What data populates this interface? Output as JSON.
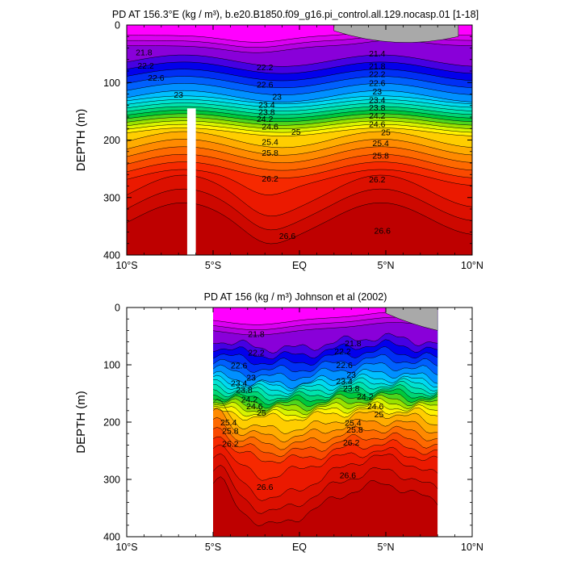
{
  "chart_data": [
    {
      "type": "contour",
      "title": "PD AT 156.3°E (kg / m³), b.e20.B1850.f09_g16.pi_control.all.129.nocasp.01 [1-18]",
      "ylabel": "DEPTH (m)",
      "xlabel": "",
      "xlim": [
        -10,
        10
      ],
      "ylim": [
        400,
        0
      ],
      "x_ticks": [
        -10,
        -5,
        0,
        5,
        10
      ],
      "x_tick_labels": [
        "10°S",
        "5°S",
        "EQ",
        "5°N",
        "10°N"
      ],
      "y_ticks": [
        0,
        100,
        200,
        300,
        400
      ],
      "y_tick_labels": [
        "0",
        "100",
        "200",
        "300",
        "400"
      ],
      "data_xrange": [
        -10,
        10
      ],
      "masked_column": {
        "x": [
          -6.5,
          -6.0
        ],
        "depth_from": 145,
        "depth_to": 400
      },
      "missing_region_color": "#a9a9a9",
      "contour_levels": [
        21.4,
        21.6,
        21.8,
        22.0,
        22.2,
        22.4,
        22.6,
        22.8,
        23.0,
        23.2,
        23.4,
        23.6,
        23.8,
        24.0,
        24.2,
        24.4,
        24.6,
        24.8,
        25.0,
        25.2,
        25.4,
        25.6,
        25.8,
        26.0,
        26.2,
        26.4,
        26.6,
        26.8
      ],
      "contour_labels": [
        {
          "text": "21.8",
          "x": -9.0,
          "y": 47
        },
        {
          "text": "22.2",
          "x": -8.9,
          "y": 70
        },
        {
          "text": "22.6",
          "x": -8.3,
          "y": 91
        },
        {
          "text": "23",
          "x": -7.0,
          "y": 121
        },
        {
          "text": "22.2",
          "x": -2.0,
          "y": 73
        },
        {
          "text": "22.6",
          "x": -2.0,
          "y": 103
        },
        {
          "text": "23",
          "x": -1.3,
          "y": 124
        },
        {
          "text": "23.4",
          "x": -1.9,
          "y": 138
        },
        {
          "text": "23.8",
          "x": -1.9,
          "y": 151
        },
        {
          "text": "24.2",
          "x": -2.0,
          "y": 163
        },
        {
          "text": "24.6",
          "x": -1.7,
          "y": 176
        },
        {
          "text": "25",
          "x": -0.2,
          "y": 185
        },
        {
          "text": "25.4",
          "x": -1.7,
          "y": 203
        },
        {
          "text": "25.8",
          "x": -1.7,
          "y": 222
        },
        {
          "text": "26.2",
          "x": -1.7,
          "y": 267
        },
        {
          "text": "26.6",
          "x": -0.7,
          "y": 366
        },
        {
          "text": "21.4",
          "x": 4.5,
          "y": 49
        },
        {
          "text": "21.8",
          "x": 4.5,
          "y": 71
        },
        {
          "text": "22.2",
          "x": 4.5,
          "y": 85
        },
        {
          "text": "22.6",
          "x": 4.5,
          "y": 100
        },
        {
          "text": "23",
          "x": 4.5,
          "y": 115
        },
        {
          "text": "23.4",
          "x": 4.5,
          "y": 130
        },
        {
          "text": "23.8",
          "x": 4.5,
          "y": 143
        },
        {
          "text": "24.2",
          "x": 4.5,
          "y": 157
        },
        {
          "text": "24.6",
          "x": 4.5,
          "y": 172
        },
        {
          "text": "25",
          "x": 5.0,
          "y": 186
        },
        {
          "text": "25.4",
          "x": 4.7,
          "y": 205
        },
        {
          "text": "25.8",
          "x": 4.7,
          "y": 227
        },
        {
          "text": "26.2",
          "x": 4.5,
          "y": 268
        },
        {
          "text": "26.6",
          "x": 4.8,
          "y": 357
        }
      ]
    },
    {
      "type": "contour",
      "title": "PD AT 156 (kg / m³) Johnson et al (2002)",
      "ylabel": "DEPTH (m)",
      "xlabel": "",
      "xlim": [
        -10,
        10
      ],
      "ylim": [
        400,
        0
      ],
      "x_ticks": [
        -10,
        -5,
        0,
        5,
        10
      ],
      "x_tick_labels": [
        "10°S",
        "5°S",
        "EQ",
        "5°N",
        "10°N"
      ],
      "y_ticks": [
        0,
        100,
        200,
        300,
        400
      ],
      "y_tick_labels": [
        "0",
        "100",
        "200",
        "300",
        "400"
      ],
      "data_xrange": [
        -5,
        8
      ],
      "missing_region_color": "#a9a9a9",
      "contour_levels": [
        21.4,
        21.6,
        21.8,
        22.0,
        22.2,
        22.4,
        22.6,
        22.8,
        23.0,
        23.2,
        23.4,
        23.6,
        23.8,
        24.0,
        24.2,
        24.4,
        24.6,
        24.8,
        25.0,
        25.2,
        25.4,
        25.6,
        25.8,
        26.0,
        26.2,
        26.4,
        26.6,
        26.8
      ],
      "contour_labels": [
        {
          "text": "21.8",
          "x": -2.5,
          "y": 46
        },
        {
          "text": "22.2",
          "x": -2.5,
          "y": 78
        },
        {
          "text": "22.6",
          "x": -3.5,
          "y": 101
        },
        {
          "text": "23",
          "x": -2.8,
          "y": 122
        },
        {
          "text": "23.4",
          "x": -3.5,
          "y": 132
        },
        {
          "text": "23.8",
          "x": -3.2,
          "y": 143
        },
        {
          "text": "24.2",
          "x": -2.9,
          "y": 160
        },
        {
          "text": "24.6",
          "x": -2.6,
          "y": 172
        },
        {
          "text": "25",
          "x": -2.2,
          "y": 183
        },
        {
          "text": "25.4",
          "x": -4.1,
          "y": 200
        },
        {
          "text": "25.8",
          "x": -4.0,
          "y": 215
        },
        {
          "text": "26.2",
          "x": -4.0,
          "y": 237
        },
        {
          "text": "26.6",
          "x": -2.0,
          "y": 313
        },
        {
          "text": "21.8",
          "x": 3.1,
          "y": 62
        },
        {
          "text": "22.2",
          "x": 2.5,
          "y": 76
        },
        {
          "text": "22.6",
          "x": 2.6,
          "y": 100
        },
        {
          "text": "23",
          "x": 3.0,
          "y": 117
        },
        {
          "text": "23.4",
          "x": 2.6,
          "y": 128
        },
        {
          "text": "23.8",
          "x": 3.0,
          "y": 141
        },
        {
          "text": "24.2",
          "x": 3.8,
          "y": 155
        },
        {
          "text": "24.6",
          "x": 4.4,
          "y": 172
        },
        {
          "text": "25",
          "x": 4.6,
          "y": 186
        },
        {
          "text": "25.4",
          "x": 3.1,
          "y": 201
        },
        {
          "text": "25.8",
          "x": 3.2,
          "y": 213
        },
        {
          "text": "26.2",
          "x": 3.0,
          "y": 235
        },
        {
          "text": "26.6",
          "x": 2.8,
          "y": 292
        }
      ]
    }
  ]
}
